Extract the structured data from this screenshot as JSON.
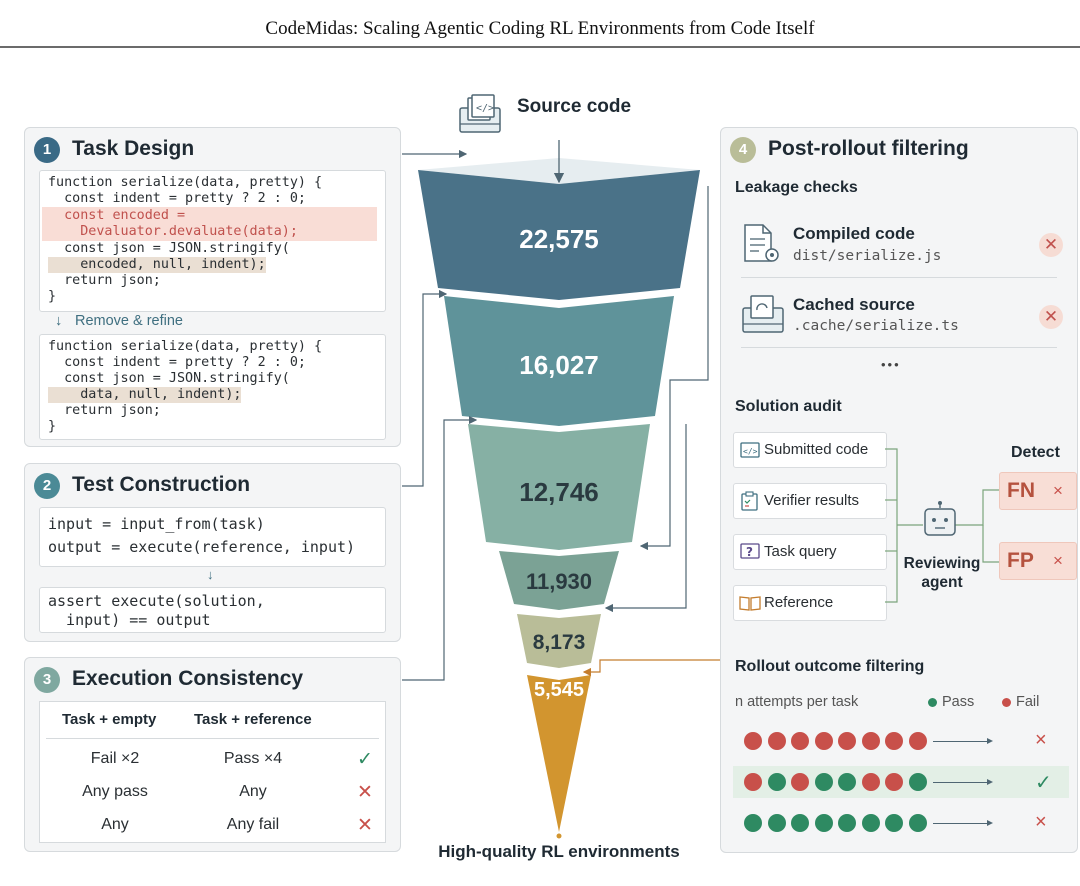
{
  "header": {
    "title": "CodeMidas: Scaling Agentic Coding RL Environments from Code Itself"
  },
  "funnel": {
    "source_label": "Source code",
    "bottom_label": "High-quality RL environments",
    "stages": [
      {
        "value": "22,575",
        "color": "#4a7288"
      },
      {
        "value": "16,027",
        "color": "#5f939a"
      },
      {
        "value": "12,746",
        "color": "#86b0a4"
      },
      {
        "value": "11,930",
        "color": "#7ba295"
      },
      {
        "value": "8,173",
        "color": "#b9bd98"
      },
      {
        "value": "5,545",
        "color": "#d2952f"
      }
    ]
  },
  "task_design": {
    "number": "1",
    "title": "Task Design",
    "code_before": [
      "function serialize(data, pretty) {",
      "  const indent = pretty ? 2 : 0;",
      "  const encoded =",
      "    Devaluator.devaluate(data);",
      "  const json = JSON.stringify(",
      "    encoded, null, indent);",
      "  return json;",
      "}"
    ],
    "refine_label": "Remove & refine",
    "code_after": [
      "function serialize(data, pretty) {",
      "  const indent = pretty ? 2 : 0;",
      "  const json = JSON.stringify(",
      "    data, null, indent);",
      "  return json;",
      "}"
    ]
  },
  "test_construction": {
    "number": "2",
    "title": "Test Construction",
    "code_top": [
      "input = input_from(task)",
      "output = execute(reference, input)"
    ],
    "arrow": "↓",
    "code_bottom": [
      "assert execute(solution,",
      "  input) == output"
    ]
  },
  "execution_consistency": {
    "number": "3",
    "title": "Execution Consistency",
    "headers": [
      "Task + empty",
      "Task + reference"
    ],
    "rows": [
      {
        "empty": "Fail ×2",
        "reference": "Pass ×4",
        "mark": "✓"
      },
      {
        "empty": "Any pass",
        "reference": "Any",
        "mark": "✕"
      },
      {
        "empty": "Any",
        "reference": "Any fail",
        "mark": "✕"
      }
    ]
  },
  "post_rollout": {
    "number": "4",
    "title": "Post-rollout filtering",
    "leakage": {
      "title": "Leakage checks",
      "items": [
        {
          "name": "Compiled code",
          "path": "dist/serialize.js",
          "icon": "compiled-file-icon",
          "mark": "✕"
        },
        {
          "name": "Cached source",
          "path": ".cache/serialize.ts",
          "icon": "cached-source-icon",
          "mark": "✕"
        }
      ],
      "more": "•••"
    },
    "audit": {
      "title": "Solution audit",
      "inputs": [
        "Submitted code",
        "Verifier results",
        "Task query",
        "Reference"
      ],
      "agent_label": "Reviewing agent",
      "detect_label": "Detect",
      "outputs": [
        {
          "label": "FN",
          "mark": "×"
        },
        {
          "label": "FP",
          "mark": "×"
        }
      ]
    },
    "rollout": {
      "title": "Rollout outcome filtering",
      "attempts_label": "n attempts per task",
      "pass_label": "Pass",
      "fail_label": "Fail",
      "pass_color": "#2e8a62",
      "fail_color": "#c8504a",
      "rows": [
        {
          "pattern": [
            "F",
            "F",
            "F",
            "F",
            "F",
            "F",
            "F",
            "F"
          ],
          "mark": "×"
        },
        {
          "pattern": [
            "F",
            "P",
            "F",
            "P",
            "P",
            "F",
            "F",
            "P"
          ],
          "mark": "✓"
        },
        {
          "pattern": [
            "P",
            "P",
            "P",
            "P",
            "P",
            "P",
            "P",
            "P"
          ],
          "mark": "×"
        }
      ]
    }
  }
}
